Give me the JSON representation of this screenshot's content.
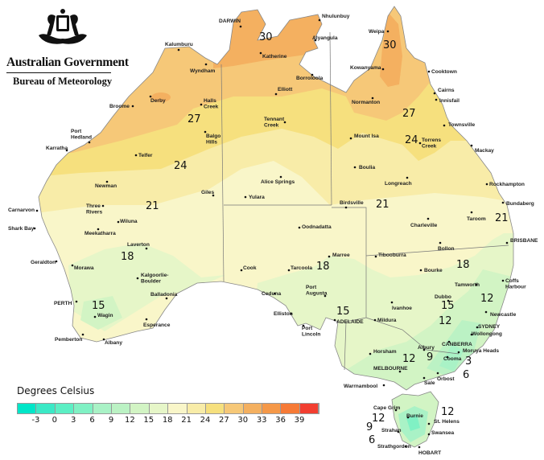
{
  "header": {
    "government": "Australian Government",
    "agency": "Bureau of Meteorology"
  },
  "legend": {
    "title": "Degrees Celsius",
    "ticks": [
      "-3",
      "0",
      "3",
      "6",
      "9",
      "12",
      "15",
      "18",
      "21",
      "24",
      "27",
      "30",
      "33",
      "36",
      "39"
    ],
    "colors": [
      "#00e6c8",
      "#3be9c6",
      "#5cefc4",
      "#80f1c4",
      "#a9f2c6",
      "#bbf2c4",
      "#d2f4c4",
      "#e6f6c8",
      "#f9f6c9",
      "#f8eca8",
      "#f6e07e",
      "#f6c878",
      "#f4b060",
      "#f59848",
      "#f67a36",
      "#f23e30"
    ]
  },
  "cities": [
    "DARWIN",
    "Katherine",
    "Nhulunbuy",
    "Alyangula",
    "Kalumburu",
    "Wyndham",
    "Derby",
    "Broome",
    "Halls Creek",
    "Elliott",
    "Borroloola",
    "Weipa",
    "Kowanyama",
    "Cooktown",
    "Cairns",
    "Innisfail",
    "Normanton",
    "Townsville",
    "Mackay",
    "Torrens Creek",
    "Mount Isa",
    "Tennant Creek",
    "Port Hedland",
    "Karratha",
    "Telfer",
    "Balgo Hills",
    "Boulia",
    "Longreach",
    "Rockhampton",
    "Bundaberg",
    "Newman",
    "Alice Springs",
    "Giles",
    "Yulara",
    "Birdsville",
    "Carnarvon",
    "Three Rivers",
    "Taroom",
    "Charleville",
    "Wiluna",
    "Meekatharra",
    "Shark Bay",
    "Oodnadatta",
    "BRISBANE",
    "Bollon",
    "Laverton",
    "Marree",
    "Tibooburra",
    "Geraldton",
    "Morawa",
    "Cook",
    "Tarcoola",
    "Bourke",
    "Kalgoorlie-Boulder",
    "Port Augusta",
    "Tamworth",
    "Coffs Harbour",
    "Dubbo",
    "Balladonia",
    "Ceduna",
    "Ivanhoe",
    "PERTH",
    "Newcastle",
    "Mildura",
    "Elliston",
    "Wagin",
    "ADELAIDE",
    "Port Lincoln",
    "SYDNEY",
    "Wollongong",
    "Esperance",
    "Pemberton",
    "Albany",
    "CANBERRA",
    "Moruya Heads",
    "Albury",
    "Horsham",
    "Cooma",
    "MELBOURNE",
    "Orbost",
    "Sale",
    "Warrnambool",
    "Cape Grim",
    "Burnie",
    "St. Helens",
    "Strahan",
    "Swansea",
    "Strathgordon",
    "HOBART"
  ],
  "contour_labels": [
    "30",
    "30",
    "27",
    "27",
    "24",
    "24",
    "21",
    "21",
    "21",
    "18",
    "18",
    "18",
    "15",
    "15",
    "15",
    "12",
    "12",
    "12",
    "9",
    "3",
    "6",
    "12",
    "9",
    "6",
    "12"
  ]
}
